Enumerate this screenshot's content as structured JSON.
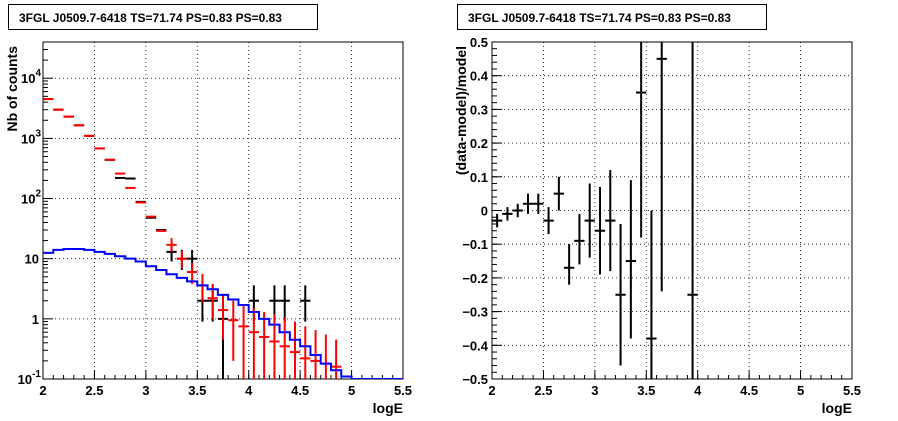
{
  "chart_data": [
    {
      "type": "scatter",
      "title": "3FGL J0509.7-6418 TS=71.74 PS=0.83 PS=0.83",
      "xlabel": "logE",
      "ylabel": "Nb of counts",
      "xlim": [
        2,
        5.5
      ],
      "ylim": [
        0.1,
        40000
      ],
      "ylog": true,
      "grid": true,
      "x_ticks": [
        "2",
        "2.5",
        "3",
        "3.5",
        "4",
        "4.5",
        "5",
        "5.5"
      ],
      "y_ticks": [
        "10^{-1}",
        "1",
        "10",
        "10^{2}",
        "10^{3}",
        "10^{4}"
      ],
      "series": [
        {
          "color": "#000000",
          "points": [
            {
              "x": 2.05,
              "y": 4500
            },
            {
              "x": 2.15,
              "y": 3000
            },
            {
              "x": 2.25,
              "y": 2300
            },
            {
              "x": 2.35,
              "y": 1650
            },
            {
              "x": 2.45,
              "y": 1100
            },
            {
              "x": 2.55,
              "y": 680
            },
            {
              "x": 2.65,
              "y": 440
            },
            {
              "x": 2.75,
              "y": 220
            },
            {
              "x": 2.85,
              "y": 215
            },
            {
              "x": 2.95,
              "y": 88
            },
            {
              "x": 3.05,
              "y": 48
            },
            {
              "x": 3.15,
              "y": 30
            },
            {
              "x": 3.25,
              "y": 13,
              "ylo": 9,
              "yhi": 17
            },
            {
              "x": 3.35,
              "y": 10,
              "ylo": 6.5,
              "yhi": 14
            },
            {
              "x": 3.45,
              "y": 10,
              "ylo": 6.5,
              "yhi": 14
            },
            {
              "x": 3.55,
              "y": 2,
              "ylo": 0.9,
              "yhi": 3.6
            },
            {
              "x": 3.65,
              "y": 2,
              "ylo": 0.9,
              "yhi": 3.6
            },
            {
              "x": 3.75,
              "y": 1,
              "ylo": 0.1,
              "yhi": 2.3
            },
            {
              "x": 4.05,
              "y": 2,
              "ylo": 0.9,
              "yhi": 3.6
            },
            {
              "x": 4.25,
              "y": 2,
              "ylo": 0.9,
              "yhi": 3.6
            },
            {
              "x": 4.35,
              "y": 2,
              "ylo": 0.9,
              "yhi": 3.6
            },
            {
              "x": 4.55,
              "y": 2,
              "ylo": 0.9,
              "yhi": 3.6
            }
          ]
        },
        {
          "color": "#ff0000",
          "points": [
            {
              "x": 2.05,
              "y": 4500
            },
            {
              "x": 2.15,
              "y": 3000
            },
            {
              "x": 2.25,
              "y": 2300
            },
            {
              "x": 2.35,
              "y": 1650
            },
            {
              "x": 2.45,
              "y": 1100
            },
            {
              "x": 2.55,
              "y": 680
            },
            {
              "x": 2.65,
              "y": 440
            },
            {
              "x": 2.75,
              "y": 260
            },
            {
              "x": 2.85,
              "y": 150
            },
            {
              "x": 2.95,
              "y": 86
            },
            {
              "x": 3.05,
              "y": 50
            },
            {
              "x": 3.15,
              "y": 29
            },
            {
              "x": 3.25,
              "y": 17,
              "ylo": 13,
              "yhi": 22
            },
            {
              "x": 3.35,
              "y": 10,
              "ylo": 7,
              "yhi": 13.5
            },
            {
              "x": 3.45,
              "y": 6,
              "ylo": 3.8,
              "yhi": 8.5
            },
            {
              "x": 3.55,
              "y": 3.6,
              "ylo": 1.9,
              "yhi": 5.6
            },
            {
              "x": 3.65,
              "y": 2.2,
              "ylo": 1.0,
              "yhi": 3.8
            },
            {
              "x": 3.75,
              "y": 1.4,
              "ylo": 0.45,
              "yhi": 2.6
            },
            {
              "x": 3.85,
              "y": 0.95,
              "ylo": 0.2,
              "yhi": 2.0
            },
            {
              "x": 3.95,
              "y": 0.75,
              "ylo": 0.1,
              "yhi": 1.7
            },
            {
              "x": 4.05,
              "y": 0.6,
              "ylo": 0.1,
              "yhi": 1.5
            },
            {
              "x": 4.15,
              "y": 0.5,
              "ylo": 0.1,
              "yhi": 1.3
            },
            {
              "x": 4.25,
              "y": 0.42,
              "ylo": 0.1,
              "yhi": 1.2
            },
            {
              "x": 4.35,
              "y": 0.35,
              "ylo": 0.1,
              "yhi": 1.05
            },
            {
              "x": 4.45,
              "y": 0.28,
              "ylo": 0.1,
              "yhi": 0.9
            },
            {
              "x": 4.55,
              "y": 0.22,
              "ylo": 0.1,
              "yhi": 0.75
            },
            {
              "x": 4.65,
              "y": 0.2,
              "ylo": 0.1,
              "yhi": 0.65
            },
            {
              "x": 4.75,
              "y": 0.18,
              "ylo": 0.1,
              "yhi": 0.55
            },
            {
              "x": 4.85,
              "y": 0.16,
              "ylo": 0.1,
              "yhi": 0.45
            }
          ]
        },
        {
          "color": "#0000ff",
          "type": "step",
          "x": [
            2.0,
            2.1,
            2.2,
            2.3,
            2.4,
            2.5,
            2.6,
            2.7,
            2.8,
            2.9,
            3.0,
            3.1,
            3.2,
            3.3,
            3.4,
            3.5,
            3.6,
            3.7,
            3.8,
            3.9,
            4.0,
            4.1,
            4.2,
            4.3,
            4.4,
            4.5,
            4.6,
            4.7,
            4.8,
            4.9,
            5.0,
            5.1,
            5.2,
            5.3,
            5.4
          ],
          "values": [
            12.5,
            14,
            14.5,
            14.5,
            14,
            13,
            12,
            11,
            10,
            9,
            7.5,
            6.5,
            5.5,
            4.8,
            4.2,
            3.6,
            3.1,
            2.5,
            2.1,
            1.7,
            1.3,
            1.0,
            0.8,
            0.6,
            0.45,
            0.35,
            0.25,
            0.18,
            0.14,
            0.11,
            0.1,
            0.1,
            0.1,
            0.1,
            0.1
          ]
        }
      ]
    },
    {
      "type": "scatter",
      "title": "3FGL J0509.7-6418 TS=71.74 PS=0.83 PS=0.83",
      "xlabel": "logE",
      "ylabel": "(data-model)/model",
      "xlim": [
        2,
        5.5
      ],
      "ylim": [
        -0.5,
        0.5
      ],
      "grid": true,
      "x_ticks": [
        "2",
        "2.5",
        "3",
        "3.5",
        "4",
        "4.5",
        "5",
        "5.5"
      ],
      "y_ticks": [
        "−0.5",
        "−0.4",
        "−0.3",
        "−0.2",
        "−0.1",
        "0",
        "0.1",
        "0.2",
        "0.3",
        "0.4",
        "0.5"
      ],
      "series": [
        {
          "color": "#000000",
          "points": [
            {
              "x": 2.05,
              "y": -0.03,
              "ylo": -0.05,
              "yhi": -0.01
            },
            {
              "x": 2.15,
              "y": -0.01,
              "ylo": -0.03,
              "yhi": 0.01
            },
            {
              "x": 2.25,
              "y": 0.0,
              "ylo": -0.02,
              "yhi": 0.02
            },
            {
              "x": 2.35,
              "y": 0.02,
              "ylo": -0.01,
              "yhi": 0.05
            },
            {
              "x": 2.45,
              "y": 0.02,
              "ylo": -0.01,
              "yhi": 0.05
            },
            {
              "x": 2.55,
              "y": -0.03,
              "ylo": -0.07,
              "yhi": 0.01
            },
            {
              "x": 2.65,
              "y": 0.05,
              "ylo": 0.0,
              "yhi": 0.1
            },
            {
              "x": 2.75,
              "y": -0.17,
              "ylo": -0.22,
              "yhi": -0.1
            },
            {
              "x": 2.85,
              "y": -0.09,
              "ylo": -0.16,
              "yhi": -0.01
            },
            {
              "x": 2.95,
              "y": -0.03,
              "ylo": -0.14,
              "yhi": 0.08
            },
            {
              "x": 3.05,
              "y": -0.06,
              "ylo": -0.19,
              "yhi": 0.07
            },
            {
              "x": 3.15,
              "y": -0.03,
              "ylo": -0.18,
              "yhi": 0.12
            },
            {
              "x": 3.25,
              "y": -0.25,
              "ylo": -0.46,
              "yhi": -0.04
            },
            {
              "x": 3.35,
              "y": -0.15,
              "ylo": -0.38,
              "yhi": 0.09
            },
            {
              "x": 3.45,
              "y": 0.35,
              "ylo": -0.08,
              "yhi": 0.5
            },
            {
              "x": 3.55,
              "y": -0.38,
              "ylo": -0.5,
              "yhi": 0.0
            },
            {
              "x": 3.65,
              "y": 0.45,
              "ylo": -0.24,
              "yhi": 0.5
            },
            {
              "x": 3.95,
              "y": -0.25,
              "ylo": -0.5,
              "yhi": 0.5
            }
          ]
        }
      ]
    }
  ]
}
